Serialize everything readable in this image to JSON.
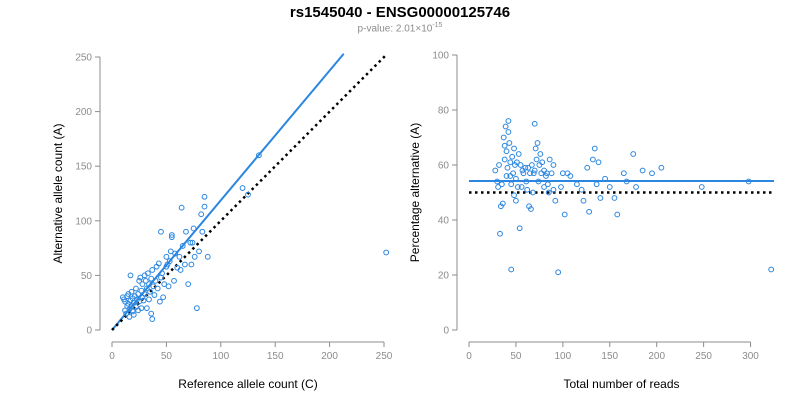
{
  "header": {
    "title": "rs1545040 - ENSG00000125746",
    "subtitle_prefix": "p-value: 2.01×10",
    "subtitle_exponent": "-15"
  },
  "colors": {
    "accent": "#2a86e0",
    "axis": "#8c8c8c",
    "reference": "#000000"
  },
  "chart_data": [
    {
      "type": "scatter",
      "xlabel": "Reference allele count (C)",
      "ylabel": "Alternative allele count (A)",
      "xlim": [
        0,
        250
      ],
      "ylim": [
        0,
        250
      ],
      "xticks": [
        0,
        50,
        100,
        150,
        200,
        250
      ],
      "yticks": [
        0,
        50,
        100,
        150,
        200,
        250
      ],
      "lines": [
        {
          "style": "solid",
          "color": "#2a86e0",
          "points": [
            [
              0,
              0
            ],
            [
              213,
              253
            ]
          ]
        },
        {
          "style": "dotted",
          "color": "#000000",
          "points": [
            [
              0,
              0
            ],
            [
              253,
              253
            ]
          ]
        }
      ],
      "points": [
        [
          10,
          30
        ],
        [
          11,
          28
        ],
        [
          12,
          18
        ],
        [
          12,
          26
        ],
        [
          13,
          15
        ],
        [
          14,
          22
        ],
        [
          14,
          31
        ],
        [
          15,
          24
        ],
        [
          15,
          33
        ],
        [
          16,
          12
        ],
        [
          16,
          19
        ],
        [
          17,
          27
        ],
        [
          17,
          50
        ],
        [
          18,
          22
        ],
        [
          18,
          35
        ],
        [
          19,
          17
        ],
        [
          19,
          29
        ],
        [
          20,
          14
        ],
        [
          20,
          25
        ],
        [
          21,
          31
        ],
        [
          22,
          21
        ],
        [
          22,
          38
        ],
        [
          23,
          28
        ],
        [
          24,
          18
        ],
        [
          24,
          33
        ],
        [
          25,
          26
        ],
        [
          25,
          45
        ],
        [
          26,
          48
        ],
        [
          27,
          20
        ],
        [
          27,
          36
        ],
        [
          28,
          30
        ],
        [
          28,
          42
        ],
        [
          29,
          27
        ],
        [
          30,
          50
        ],
        [
          30,
          33
        ],
        [
          31,
          45
        ],
        [
          32,
          20
        ],
        [
          32,
          38
        ],
        [
          33,
          52
        ],
        [
          34,
          28
        ],
        [
          34,
          42
        ],
        [
          35,
          35
        ],
        [
          36,
          15
        ],
        [
          36,
          47
        ],
        [
          37,
          10
        ],
        [
          37,
          55
        ],
        [
          38,
          40
        ],
        [
          39,
          32
        ],
        [
          40,
          45
        ],
        [
          41,
          58
        ],
        [
          42,
          38
        ],
        [
          43,
          61
        ],
        [
          44,
          26
        ],
        [
          45,
          48
        ],
        [
          45,
          90
        ],
        [
          46,
          52
        ],
        [
          47,
          30
        ],
        [
          48,
          42
        ],
        [
          50,
          58
        ],
        [
          50,
          67
        ],
        [
          51,
          60
        ],
        [
          52,
          40
        ],
        [
          53,
          63
        ],
        [
          54,
          72
        ],
        [
          55,
          87
        ],
        [
          55,
          85
        ],
        [
          57,
          45
        ],
        [
          58,
          70
        ],
        [
          60,
          57
        ],
        [
          62,
          67
        ],
        [
          63,
          55
        ],
        [
          64,
          112
        ],
        [
          65,
          77
        ],
        [
          67,
          60
        ],
        [
          68,
          90
        ],
        [
          70,
          42
        ],
        [
          72,
          80
        ],
        [
          73,
          60
        ],
        [
          74,
          80
        ],
        [
          75,
          93
        ],
        [
          76,
          67
        ],
        [
          78,
          20
        ],
        [
          80,
          72
        ],
        [
          82,
          106
        ],
        [
          83,
          90
        ],
        [
          85,
          113
        ],
        [
          85,
          122
        ],
        [
          88,
          67
        ],
        [
          120,
          130
        ],
        [
          125,
          124
        ],
        [
          135,
          160
        ],
        [
          252,
          71
        ]
      ]
    },
    {
      "type": "scatter",
      "xlabel": "Total number of reads",
      "ylabel": "Percentage alternative (A)",
      "xlim": [
        0,
        325
      ],
      "ylim": [
        0,
        100
      ],
      "xticks": [
        0,
        50,
        100,
        150,
        200,
        250,
        300
      ],
      "yticks": [
        0,
        20,
        40,
        60,
        80,
        100
      ],
      "lines": [
        {
          "style": "solid",
          "color": "#2a86e0",
          "points": [
            [
              0,
              54.2
            ],
            [
              325,
              54.2
            ]
          ]
        },
        {
          "style": "dotted",
          "color": "#000000",
          "points": [
            [
              0,
              50
            ],
            [
              325,
              50
            ]
          ]
        }
      ],
      "points": [
        [
          28,
          58
        ],
        [
          30,
          54
        ],
        [
          31,
          52
        ],
        [
          32,
          60
        ],
        [
          33,
          35
        ],
        [
          34,
          45
        ],
        [
          35,
          53
        ],
        [
          36,
          46
        ],
        [
          37,
          70
        ],
        [
          38,
          62
        ],
        [
          38,
          67
        ],
        [
          39,
          74
        ],
        [
          40,
          65
        ],
        [
          40,
          56
        ],
        [
          41,
          59
        ],
        [
          42,
          76
        ],
        [
          42,
          72
        ],
        [
          43,
          68
        ],
        [
          44,
          61
        ],
        [
          44,
          56
        ],
        [
          45,
          53
        ],
        [
          45,
          22
        ],
        [
          46,
          63
        ],
        [
          47,
          57
        ],
        [
          48,
          49
        ],
        [
          48,
          66
        ],
        [
          49,
          60
        ],
        [
          50,
          55
        ],
        [
          50,
          47
        ],
        [
          51,
          61
        ],
        [
          52,
          52
        ],
        [
          53,
          64
        ],
        [
          54,
          37
        ],
        [
          55,
          60
        ],
        [
          56,
          52
        ],
        [
          57,
          58
        ],
        [
          58,
          57
        ],
        [
          60,
          59
        ],
        [
          61,
          54
        ],
        [
          62,
          51
        ],
        [
          63,
          59
        ],
        [
          64,
          45
        ],
        [
          65,
          57
        ],
        [
          66,
          44
        ],
        [
          67,
          60
        ],
        [
          68,
          50
        ],
        [
          69,
          57
        ],
        [
          70,
          75
        ],
        [
          70,
          58
        ],
        [
          71,
          66
        ],
        [
          72,
          62
        ],
        [
          73,
          68
        ],
        [
          74,
          54
        ],
        [
          75,
          60
        ],
        [
          76,
          64
        ],
        [
          77,
          57
        ],
        [
          78,
          61
        ],
        [
          80,
          58
        ],
        [
          80,
          52
        ],
        [
          82,
          56
        ],
        [
          83,
          57
        ],
        [
          84,
          53
        ],
        [
          85,
          50
        ],
        [
          86,
          62
        ],
        [
          88,
          57
        ],
        [
          90,
          60
        ],
        [
          90,
          51
        ],
        [
          92,
          47
        ],
        [
          95,
          21
        ],
        [
          98,
          52
        ],
        [
          100,
          57
        ],
        [
          102,
          42
        ],
        [
          105,
          57
        ],
        [
          108,
          56
        ],
        [
          115,
          53
        ],
        [
          120,
          51
        ],
        [
          122,
          47
        ],
        [
          126,
          59
        ],
        [
          128,
          43
        ],
        [
          132,
          62
        ],
        [
          134,
          66
        ],
        [
          136,
          53
        ],
        [
          138,
          61
        ],
        [
          140,
          48
        ],
        [
          145,
          55
        ],
        [
          150,
          52
        ],
        [
          155,
          48
        ],
        [
          158,
          42
        ],
        [
          165,
          57
        ],
        [
          168,
          54
        ],
        [
          175,
          64
        ],
        [
          178,
          52
        ],
        [
          185,
          58
        ],
        [
          195,
          57
        ],
        [
          205,
          59
        ],
        [
          248,
          52
        ],
        [
          298,
          54
        ],
        [
          322,
          22
        ]
      ]
    }
  ]
}
